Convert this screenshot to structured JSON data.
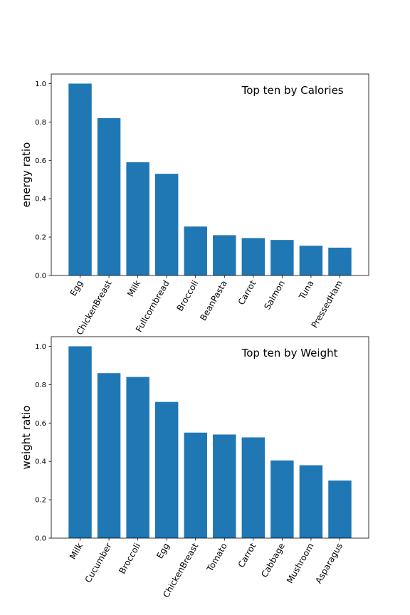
{
  "chart_data": [
    {
      "type": "bar",
      "title": "",
      "annotation": "Top ten by Calories",
      "xlabel": "",
      "ylabel": "energy ratio",
      "categories": [
        "Egg",
        "ChickenBreast",
        "Milk",
        "Fullcornbread",
        "Broccoli",
        "BeanPasta",
        "Carrot",
        "Salmon",
        "Tuna",
        "PressedHam"
      ],
      "values": [
        1.0,
        0.82,
        0.59,
        0.53,
        0.255,
        0.21,
        0.195,
        0.185,
        0.155,
        0.145
      ],
      "ylim": [
        0,
        1.05
      ],
      "yticks": [
        0.0,
        0.2,
        0.4,
        0.6,
        0.8,
        1.0
      ],
      "ytick_labels": [
        "0.0",
        "0.2",
        "0.4",
        "0.6",
        "0.8",
        "1.0"
      ],
      "grid": false,
      "bar_color": "#1f77b4"
    },
    {
      "type": "bar",
      "title": "",
      "annotation": "Top ten by Weight",
      "xlabel": "",
      "ylabel": "weight ratio",
      "categories": [
        "Milk",
        "Cucumber",
        "Broccoli",
        "Egg",
        "ChickenBreast",
        "Tomato",
        "Carrot",
        "Cabbage",
        "Mushroom",
        "Asparagus"
      ],
      "values": [
        1.0,
        0.86,
        0.84,
        0.71,
        0.55,
        0.54,
        0.525,
        0.405,
        0.38,
        0.3
      ],
      "ylim": [
        0,
        1.05
      ],
      "yticks": [
        0.0,
        0.2,
        0.4,
        0.6,
        0.8,
        1.0
      ],
      "ytick_labels": [
        "0.0",
        "0.2",
        "0.4",
        "0.6",
        "0.8",
        "1.0"
      ],
      "grid": false,
      "bar_color": "#1f77b4"
    }
  ]
}
